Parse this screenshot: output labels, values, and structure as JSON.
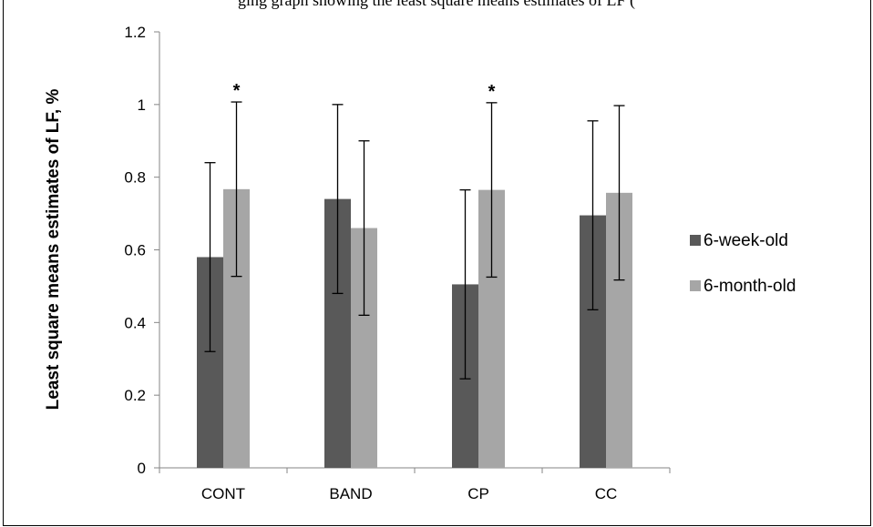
{
  "page": {
    "top_caption": "ging graph showing the least square means estimates of LF ("
  },
  "chart_data": {
    "type": "bar",
    "title": "",
    "xlabel": "",
    "ylabel": "Least square means estimates of LF, %",
    "ylim": [
      0,
      1.2
    ],
    "yticks": [
      "0",
      "0.2",
      "0.4",
      "0.6",
      "0.8",
      "1",
      "1.2"
    ],
    "ytick_values": [
      0,
      0.2,
      0.4,
      0.6,
      0.8,
      1.0,
      1.2
    ],
    "categories": [
      "CONT",
      "BAND",
      "CP",
      "CC"
    ],
    "series": [
      {
        "name": "6-week-old",
        "color": "#595959",
        "values": [
          0.58,
          0.74,
          0.505,
          0.695
        ],
        "error_low": [
          0.32,
          0.48,
          0.245,
          0.435
        ],
        "error_high": [
          0.84,
          1.0,
          0.765,
          0.955
        ],
        "annotations": [
          "",
          "",
          "",
          ""
        ]
      },
      {
        "name": "6-month-old",
        "color": "#a6a6a6",
        "values": [
          0.767,
          0.66,
          0.765,
          0.757
        ],
        "error_low": [
          0.527,
          0.42,
          0.525,
          0.517
        ],
        "error_high": [
          1.007,
          0.9,
          1.005,
          0.997
        ],
        "annotations": [
          "*",
          "",
          "*",
          ""
        ]
      }
    ],
    "grid": false,
    "legend_position": "right"
  }
}
